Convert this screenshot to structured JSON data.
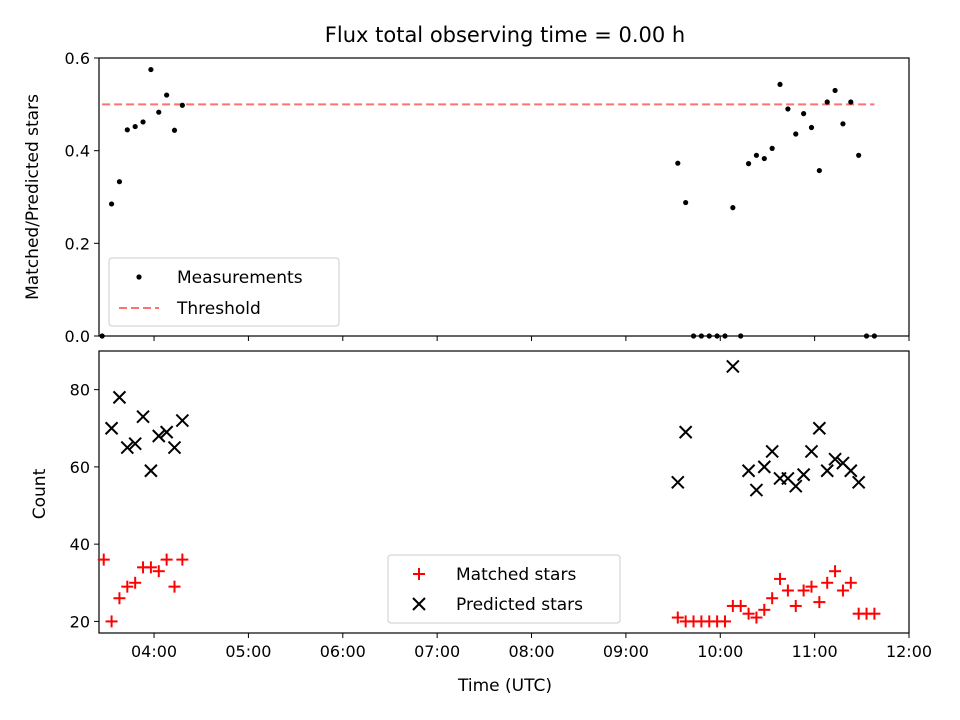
{
  "chart_data": [
    {
      "type": "scatter",
      "title": "Flux total observing time = 0.00 h",
      "xlabel": "",
      "ylabel": "Matched/Predicted stars",
      "xlim": [
        "03:25",
        "12:00"
      ],
      "ylim": [
        0,
        0.6
      ],
      "yticks": [
        "0.0",
        "0.2",
        "0.4",
        "0.6"
      ],
      "grid": false,
      "legend_position": "lower-left",
      "series": [
        {
          "name": "Measurements",
          "color": "#000000",
          "marker": "dot",
          "points": [
            [
              "03:27",
              0.0
            ],
            [
              "03:33",
              0.285
            ],
            [
              "03:38",
              0.333
            ],
            [
              "03:43",
              0.445
            ],
            [
              "03:48",
              0.452
            ],
            [
              "03:53",
              0.462
            ],
            [
              "03:58",
              0.575
            ],
            [
              "04:03",
              0.483
            ],
            [
              "04:08",
              0.52
            ],
            [
              "04:13",
              0.444
            ],
            [
              "04:18",
              0.498
            ],
            [
              "09:33",
              0.373
            ],
            [
              "09:38",
              0.288
            ],
            [
              "09:43",
              0.0
            ],
            [
              "09:48",
              0.0
            ],
            [
              "09:53",
              0.0
            ],
            [
              "09:58",
              0.0
            ],
            [
              "10:03",
              0.0
            ],
            [
              "10:08",
              0.277
            ],
            [
              "10:13",
              0.0
            ],
            [
              "10:18",
              0.372
            ],
            [
              "10:23",
              0.39
            ],
            [
              "10:28",
              0.383
            ],
            [
              "10:33",
              0.405
            ],
            [
              "10:38",
              0.543
            ],
            [
              "10:43",
              0.49
            ],
            [
              "10:48",
              0.436
            ],
            [
              "10:53",
              0.48
            ],
            [
              "10:58",
              0.45
            ],
            [
              "11:03",
              0.357
            ],
            [
              "11:08",
              0.505
            ],
            [
              "11:13",
              0.53
            ],
            [
              "11:18",
              0.458
            ],
            [
              "11:23",
              0.505
            ],
            [
              "11:28",
              0.39
            ],
            [
              "11:33",
              0.0
            ],
            [
              "11:38",
              0.0
            ]
          ]
        },
        {
          "name": "Threshold",
          "color": "#ff7070",
          "style": "dashed",
          "points": [
            [
              "03:27",
              0.5
            ],
            [
              "11:38",
              0.5
            ]
          ]
        }
      ]
    },
    {
      "type": "scatter",
      "title": "",
      "xlabel": "Time (UTC)",
      "ylabel": "Count",
      "xlim": [
        "03:25",
        "12:00"
      ],
      "ylim": [
        17,
        90
      ],
      "xticks": [
        "04:00",
        "05:00",
        "06:00",
        "07:00",
        "08:00",
        "09:00",
        "10:00",
        "11:00",
        "12:00"
      ],
      "yticks": [
        "20",
        "40",
        "60",
        "80"
      ],
      "grid": false,
      "legend_position": "lower-center",
      "series": [
        {
          "name": "Matched stars",
          "color": "#ff0000",
          "marker": "plus",
          "points": [
            [
              "03:28",
              36
            ],
            [
              "03:33",
              20
            ],
            [
              "03:38",
              26
            ],
            [
              "03:43",
              29
            ],
            [
              "03:48",
              30
            ],
            [
              "03:53",
              34
            ],
            [
              "03:58",
              34
            ],
            [
              "04:03",
              33
            ],
            [
              "04:08",
              36
            ],
            [
              "04:13",
              29
            ],
            [
              "04:18",
              36
            ],
            [
              "09:33",
              21
            ],
            [
              "09:38",
              20
            ],
            [
              "09:43",
              20
            ],
            [
              "09:48",
              20
            ],
            [
              "09:53",
              20
            ],
            [
              "09:58",
              20
            ],
            [
              "10:03",
              20
            ],
            [
              "10:08",
              24
            ],
            [
              "10:13",
              24
            ],
            [
              "10:18",
              22
            ],
            [
              "10:23",
              21
            ],
            [
              "10:28",
              23
            ],
            [
              "10:33",
              26
            ],
            [
              "10:38",
              31
            ],
            [
              "10:43",
              28
            ],
            [
              "10:48",
              24
            ],
            [
              "10:53",
              28
            ],
            [
              "10:58",
              29
            ],
            [
              "11:03",
              25
            ],
            [
              "11:08",
              30
            ],
            [
              "11:13",
              33
            ],
            [
              "11:18",
              28
            ],
            [
              "11:23",
              30
            ],
            [
              "11:28",
              22
            ],
            [
              "11:33",
              22
            ],
            [
              "11:38",
              22
            ]
          ]
        },
        {
          "name": "Predicted stars",
          "color": "#000000",
          "marker": "x",
          "points": [
            [
              "03:33",
              70
            ],
            [
              "03:38",
              78
            ],
            [
              "03:43",
              65
            ],
            [
              "03:48",
              66
            ],
            [
              "03:53",
              73
            ],
            [
              "03:58",
              59
            ],
            [
              "04:03",
              68
            ],
            [
              "04:08",
              69
            ],
            [
              "04:13",
              65
            ],
            [
              "04:18",
              72
            ],
            [
              "09:33",
              56
            ],
            [
              "09:38",
              69
            ],
            [
              "10:08",
              86
            ],
            [
              "10:18",
              59
            ],
            [
              "10:23",
              54
            ],
            [
              "10:28",
              60
            ],
            [
              "10:33",
              64
            ],
            [
              "10:38",
              57
            ],
            [
              "10:43",
              57
            ],
            [
              "10:48",
              55
            ],
            [
              "10:53",
              58
            ],
            [
              "10:58",
              64
            ],
            [
              "11:03",
              70
            ],
            [
              "11:08",
              59
            ],
            [
              "11:13",
              62
            ],
            [
              "11:18",
              61
            ],
            [
              "11:23",
              59
            ],
            [
              "11:28",
              56
            ]
          ]
        }
      ]
    }
  ]
}
